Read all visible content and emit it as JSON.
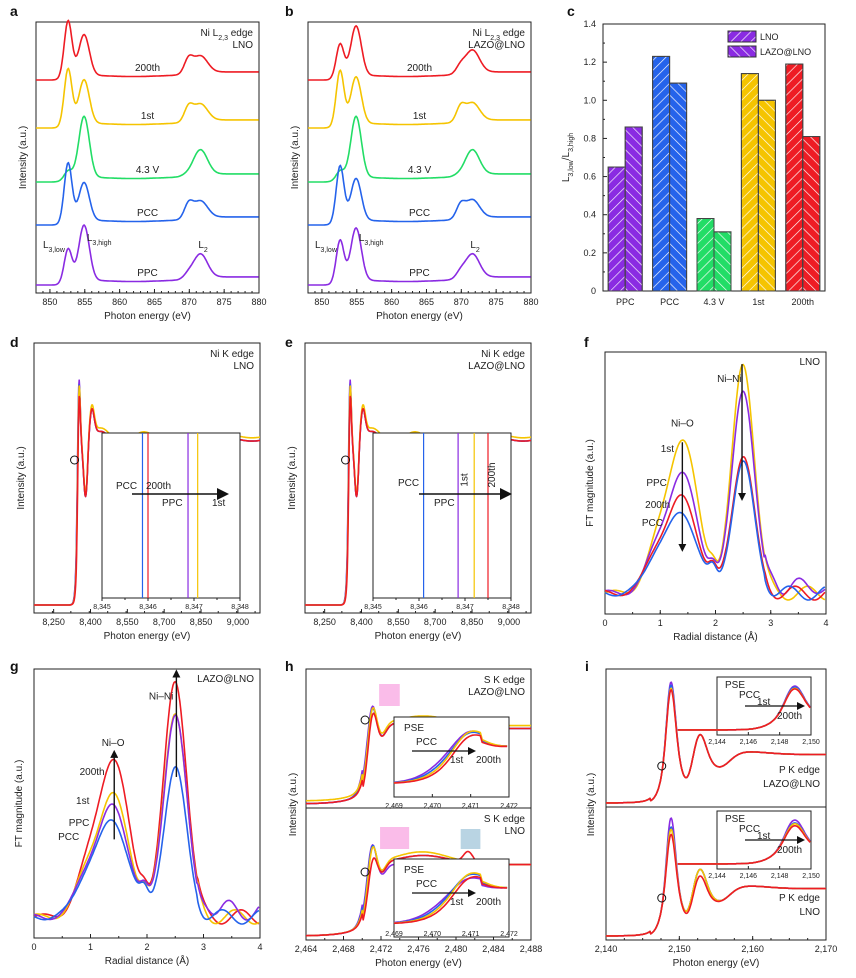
{
  "colors": {
    "PPC": "#8a2be2",
    "PCC": "#2563eb",
    "4.3 V": "#22dd66",
    "1st": "#f5c400",
    "200th": "#ee1c24",
    "PSE": "#8a2be2",
    "highlight_pink": "#f8a0e0",
    "highlight_blue": "#8ab8d0"
  },
  "chart_data": [
    {
      "panel": "a",
      "type": "line",
      "title": "Ni L2,3 edge",
      "subtitle": "LNO",
      "xlabel": "Photon energy (eV)",
      "ylabel": "Intensity (a.u.)",
      "xlim": [
        848,
        880
      ],
      "xticks": [
        "850",
        "855",
        "860",
        "865",
        "870",
        "875",
        "880"
      ],
      "series": [
        {
          "name": "200th",
          "peaks": {
            "L3,low": 852.6,
            "L3,high": 854.8,
            "L2a": 869.8,
            "L2b": 871.2
          },
          "ratio_low_high": 1.19
        },
        {
          "name": "1st",
          "peaks": {
            "L3,low": 852.6,
            "L3,high": 854.8,
            "L2a": 869.8,
            "L2b": 871.2
          },
          "ratio_low_high": 1.14
        },
        {
          "name": "4.3 V",
          "peaks": {
            "L3,low": 852.6,
            "L3,high": 855.0,
            "L2": 872.2
          },
          "ratio_low_high": 0.38
        },
        {
          "name": "PCC",
          "peaks": {
            "L3,low": 852.6,
            "L3,high": 854.8,
            "L2a": 869.8,
            "L2b": 871.2
          },
          "ratio_low_high": 1.23
        },
        {
          "name": "PPC",
          "peaks": {
            "L3,low": 852.6,
            "L3,high": 854.8,
            "L2": 871.8
          },
          "ratio_low_high": 0.65
        }
      ],
      "annotations": [
        "L3,low",
        "L3,high",
        "L2"
      ]
    },
    {
      "panel": "b",
      "type": "line",
      "title": "Ni L2,3 edge",
      "subtitle": "LAZO@LNO",
      "xlabel": "Photon energy (eV)",
      "ylabel": "Intensity (a.u.)",
      "xlim": [
        848,
        880
      ],
      "xticks": [
        "850",
        "855",
        "860",
        "865",
        "870",
        "875",
        "880"
      ],
      "series": [
        {
          "name": "200th",
          "ratio_low_high": 0.81
        },
        {
          "name": "1st",
          "ratio_low_high": 1.0
        },
        {
          "name": "4.3 V",
          "ratio_low_high": 0.31
        },
        {
          "name": "PCC",
          "ratio_low_high": 1.09
        },
        {
          "name": "PPC",
          "ratio_low_high": 0.86
        }
      ],
      "annotations": [
        "L3,low",
        "L3,high",
        "L2"
      ]
    },
    {
      "panel": "c",
      "type": "bar",
      "title": "",
      "xlabel": "",
      "ylabel": "L3,low/L3,high",
      "ylim": [
        0,
        1.4
      ],
      "yticks": [
        "0",
        "0.2",
        "0.4",
        "0.6",
        "0.8",
        "1.0",
        "1.2",
        "1.4"
      ],
      "categories": [
        "PPC",
        "PCC",
        "4.3 V",
        "1st",
        "200th"
      ],
      "series": [
        {
          "name": "LNO",
          "hatch": "forward",
          "values": [
            0.65,
            1.23,
            0.38,
            1.14,
            1.19
          ]
        },
        {
          "name": "LAZO@LNO",
          "hatch": "backward",
          "values": [
            0.86,
            1.09,
            0.31,
            1.0,
            0.81
          ]
        }
      ],
      "legend": "top-right"
    },
    {
      "panel": "d",
      "type": "line",
      "title": "Ni K edge",
      "subtitle": "LNO",
      "xlabel": "Photon energy (eV)",
      "ylabel": "Intensity (a.u.)",
      "xticks": [
        "8,250",
        "8,400",
        "8,550",
        "8,700",
        "8,850",
        "9,000"
      ],
      "inset": {
        "xticks": [
          "8,345",
          "8,346",
          "8,347",
          "8,348"
        ],
        "xlim": [
          8345,
          8348
        ],
        "edge_positions": [
          {
            "name": "PCC",
            "value": 8345.88
          },
          {
            "name": "200th",
            "value": 8346.0
          },
          {
            "name": "PPC",
            "value": 8346.87
          },
          {
            "name": "1st",
            "value": 8347.08
          }
        ],
        "labels": [
          "PCC",
          "200th",
          "PPC",
          "1st"
        ]
      }
    },
    {
      "panel": "e",
      "type": "line",
      "title": "Ni K edge",
      "subtitle": "LAZO@LNO",
      "xlabel": "Photon energy (eV)",
      "ylabel": "Intensity (a.u.)",
      "xticks": [
        "8,250",
        "8,400",
        "8,550",
        "8,700",
        "8,850",
        "9,000"
      ],
      "inset": {
        "xticks": [
          "8,345",
          "8,346",
          "8,347",
          "8,348"
        ],
        "xlim": [
          8345,
          8348
        ],
        "edge_positions": [
          {
            "name": "PCC",
            "value": 8346.1
          },
          {
            "name": "PPC",
            "value": 8346.85
          },
          {
            "name": "1st",
            "value": 8347.2
          },
          {
            "name": "200th",
            "value": 8347.5
          }
        ],
        "labels": [
          "PCC",
          "PPC",
          "1st",
          "200th"
        ]
      }
    },
    {
      "panel": "f",
      "type": "line",
      "title": "LNO",
      "xlabel": "Radial distance (Å)",
      "ylabel": "FT magnitude (a.u.)",
      "xlim": [
        0,
        4
      ],
      "xticks": [
        "0",
        "1",
        "2",
        "3",
        "4"
      ],
      "series": [
        {
          "name": "1st",
          "NiO_peak": 0.66,
          "NiNi_peak": 1.0
        },
        {
          "name": "PPC",
          "NiO_peak": 0.51,
          "NiNi_peak": 0.89
        },
        {
          "name": "200th",
          "NiO_peak": 0.41,
          "NiNi_peak": 0.6
        },
        {
          "name": "PCC",
          "NiO_peak": 0.34,
          "NiNi_peak": 0.57
        }
      ],
      "annotations": [
        "Ni–O",
        "Ni–Ni"
      ]
    },
    {
      "panel": "g",
      "type": "line",
      "title": "LAZO@LNO",
      "xlabel": "Radial distance (Å)",
      "ylabel": "FT magnitude (a.u.)",
      "xlim": [
        0,
        4
      ],
      "xticks": [
        "0",
        "1",
        "2",
        "3",
        "4"
      ],
      "series": [
        {
          "name": "200th",
          "NiO_peak": 0.66,
          "NiNi_peak": 1.0
        },
        {
          "name": "1st",
          "NiO_peak": 0.51,
          "NiNi_peak": 0.87
        },
        {
          "name": "PPC",
          "NiO_peak": 0.46,
          "NiNi_peak": 0.86
        },
        {
          "name": "PCC",
          "NiO_peak": 0.4,
          "NiNi_peak": 0.63
        }
      ],
      "annotations": [
        "Ni–O",
        "Ni–Ni"
      ]
    },
    {
      "panel": "h",
      "type": "line",
      "xlabel": "Photon energy (eV)",
      "ylabel": "Intensity (a.u.)",
      "xlim": [
        2464,
        2488
      ],
      "xticks": [
        "2,464",
        "2,468",
        "2,472",
        "2,476",
        "2,480",
        "2,484",
        "2,488"
      ],
      "subplots": [
        {
          "title": "S K edge",
          "subtitle": "LAZO@LNO",
          "inset": {
            "xticks": [
              "2,469",
              "2,470",
              "2,471",
              "2,472"
            ],
            "labels": [
              "PSE",
              "PCC",
              "1st",
              "200th"
            ]
          }
        },
        {
          "title": "S K edge",
          "subtitle": "LNO",
          "inset": {
            "xticks": [
              "2,469",
              "2,470",
              "2,471",
              "2,472"
            ],
            "labels": [
              "PSE",
              "PCC",
              "1st",
              "200th"
            ]
          }
        }
      ]
    },
    {
      "panel": "i",
      "type": "line",
      "xlabel": "Photon energy (eV)",
      "ylabel": "Intensity (a.u.)",
      "xlim": [
        2140,
        2170
      ],
      "xticks": [
        "2,140",
        "2,150",
        "2,160",
        "2,170"
      ],
      "subplots": [
        {
          "title": "P K edge",
          "subtitle": "LAZO@LNO",
          "inset": {
            "xticks": [
              "2,144",
              "2,146",
              "2,148",
              "2,150"
            ],
            "labels": [
              "PSE",
              "PCC",
              "1st",
              "200th"
            ]
          }
        },
        {
          "title": "P K edge",
          "subtitle": "LNO",
          "inset": {
            "xticks": [
              "2,144",
              "2,146",
              "2,148",
              "2,150"
            ],
            "labels": [
              "PSE",
              "PCC",
              "1st",
              "200th"
            ]
          }
        }
      ]
    }
  ],
  "panel_letters": [
    "a",
    "b",
    "c",
    "d",
    "e",
    "f",
    "g",
    "h",
    "i"
  ]
}
